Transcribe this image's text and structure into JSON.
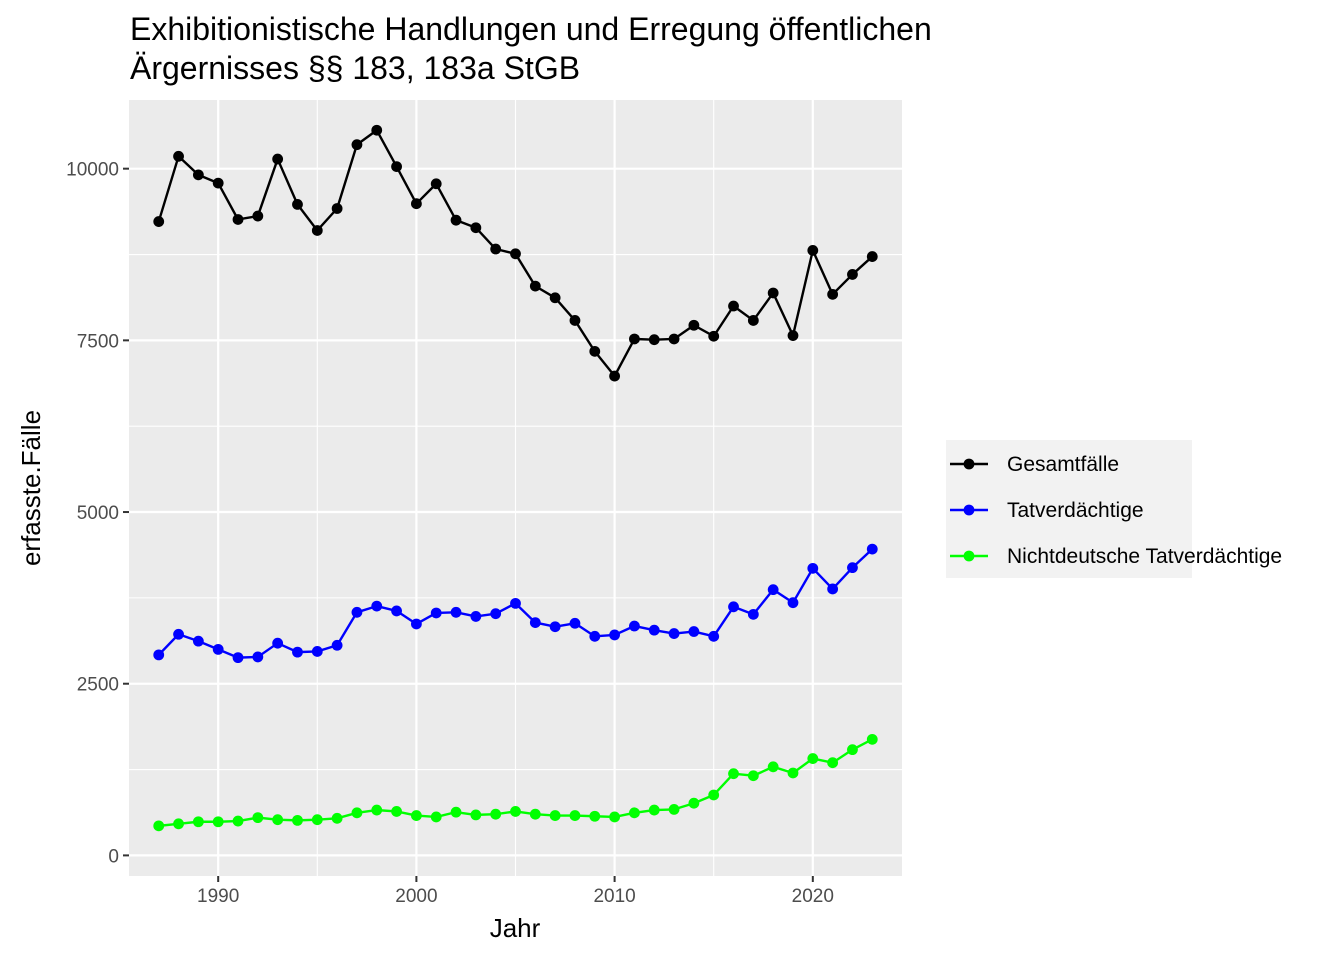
{
  "chart_data": {
    "type": "line",
    "title": "Exhibitionistische Handlungen und Erregung öffentlichen Ärgernisses §§ 183, 183a StGB",
    "title_lines": [
      "Exhibitionistische Handlungen und Erregung öffentlichen",
      "Ärgernisses §§ 183, 183a StGB"
    ],
    "xlabel": "Jahr",
    "ylabel": "erfasste.Fälle",
    "xlim": [
      1985.5,
      2024.5
    ],
    "ylim": [
      -300,
      11000
    ],
    "x_ticks": [
      1990,
      2000,
      2010,
      2020
    ],
    "x_tick_labels": [
      "1990",
      "2000",
      "2010",
      "2020"
    ],
    "y_ticks": [
      0,
      2500,
      5000,
      7500,
      10000
    ],
    "y_tick_labels": [
      "0",
      "2500",
      "5000",
      "7500",
      "10000"
    ],
    "grid": true,
    "legend_position": "right",
    "background": "#ebebeb",
    "x": [
      1987,
      1988,
      1989,
      1990,
      1991,
      1992,
      1993,
      1994,
      1995,
      1996,
      1997,
      1998,
      1999,
      2000,
      2001,
      2002,
      2003,
      2004,
      2005,
      2006,
      2007,
      2008,
      2009,
      2010,
      2011,
      2012,
      2013,
      2014,
      2015,
      2016,
      2017,
      2018,
      2019,
      2020,
      2021,
      2022,
      2023
    ],
    "series": [
      {
        "name": "Gesamtfälle",
        "color": "#000000",
        "values": [
          9230,
          10180,
          9910,
          9790,
          9260,
          9310,
          10140,
          9480,
          9100,
          9420,
          10350,
          10560,
          10030,
          9490,
          9780,
          9250,
          9140,
          8830,
          8760,
          8290,
          8120,
          7790,
          7340,
          6980,
          7520,
          7510,
          7520,
          7720,
          7560,
          8000,
          7790,
          8190,
          7570,
          8810,
          8170,
          8460,
          8720
        ]
      },
      {
        "name": "Tatverdächtige",
        "color": "#0000ff",
        "values": [
          2920,
          3220,
          3120,
          3000,
          2880,
          2890,
          3090,
          2960,
          2970,
          3060,
          3540,
          3630,
          3560,
          3370,
          3530,
          3540,
          3480,
          3520,
          3670,
          3390,
          3330,
          3380,
          3190,
          3210,
          3340,
          3280,
          3230,
          3260,
          3190,
          3620,
          3510,
          3870,
          3680,
          4180,
          3880,
          4190,
          4460
        ]
      },
      {
        "name": "Nichtdeutsche Tatverdächtige",
        "color": "#00ff00",
        "values": [
          430,
          460,
          490,
          490,
          500,
          550,
          520,
          510,
          520,
          540,
          620,
          660,
          640,
          580,
          560,
          630,
          590,
          600,
          640,
          600,
          580,
          580,
          570,
          560,
          620,
          660,
          670,
          760,
          880,
          1190,
          1160,
          1290,
          1200,
          1410,
          1350,
          1540,
          1690
        ]
      }
    ]
  }
}
